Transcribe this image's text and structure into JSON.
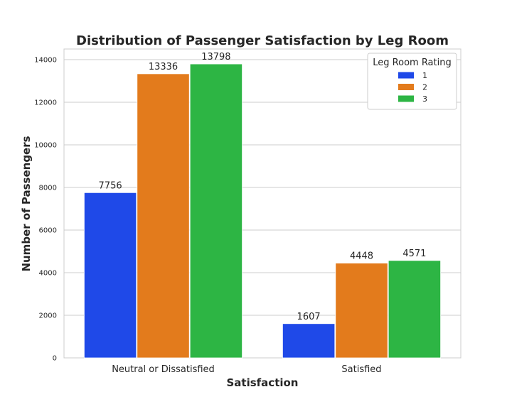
{
  "chart_data": {
    "type": "bar",
    "title": "Distribution of Passenger Satisfaction by Leg Room",
    "xlabel": "Satisfaction",
    "ylabel": "Number of Passengers",
    "categories": [
      "Neutral or Dissatisfied",
      "Satisfied"
    ],
    "series": [
      {
        "name": "1",
        "values": [
          7756,
          1607
        ],
        "color": "#1f49e8"
      },
      {
        "name": "2",
        "values": [
          13336,
          4448
        ],
        "color": "#e37b1c"
      },
      {
        "name": "3",
        "values": [
          13798,
          4571
        ],
        "color": "#2db544"
      }
    ],
    "ylim": [
      0,
      14500
    ],
    "yticks": [
      0,
      2000,
      4000,
      6000,
      8000,
      10000,
      12000,
      14000
    ],
    "grid": true,
    "legend": {
      "title": "Leg Room Rating",
      "placement": "top-right"
    }
  }
}
